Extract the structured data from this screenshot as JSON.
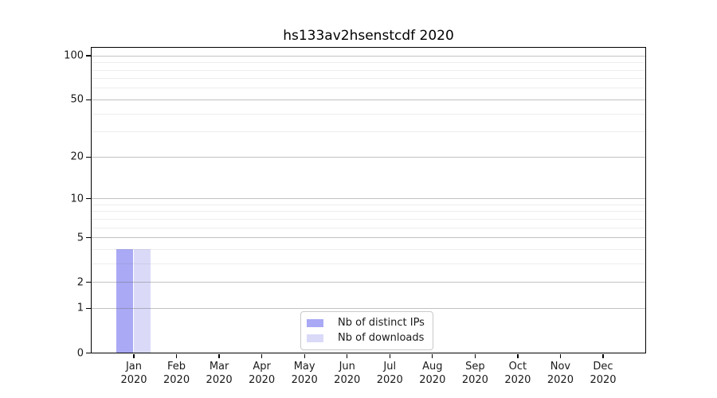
{
  "chart_data": {
    "type": "bar",
    "title": "hs133av2hsenstcdf 2020",
    "categories": [
      {
        "month": "Jan",
        "year": "2020"
      },
      {
        "month": "Feb",
        "year": "2020"
      },
      {
        "month": "Mar",
        "year": "2020"
      },
      {
        "month": "Apr",
        "year": "2020"
      },
      {
        "month": "May",
        "year": "2020"
      },
      {
        "month": "Jun",
        "year": "2020"
      },
      {
        "month": "Jul",
        "year": "2020"
      },
      {
        "month": "Aug",
        "year": "2020"
      },
      {
        "month": "Sep",
        "year": "2020"
      },
      {
        "month": "Oct",
        "year": "2020"
      },
      {
        "month": "Nov",
        "year": "2020"
      },
      {
        "month": "Dec",
        "year": "2020"
      }
    ],
    "series": [
      {
        "name": "Nb of distinct IPs",
        "color": "#a9a9f5",
        "values": [
          4,
          0,
          0,
          0,
          0,
          0,
          0,
          0,
          0,
          0,
          0,
          0
        ]
      },
      {
        "name": "Nb of downloads",
        "color": "#dadaf8",
        "values": [
          4,
          0,
          0,
          0,
          0,
          0,
          0,
          0,
          0,
          0,
          0,
          0
        ]
      }
    ],
    "yscale": "log1p",
    "ylim": [
      0,
      113.5
    ],
    "yticks": [
      0,
      1,
      2,
      5,
      10,
      20,
      50,
      100
    ],
    "yticks_minor": [
      3,
      4,
      6,
      7,
      8,
      9,
      30,
      40,
      60,
      70,
      80,
      90
    ],
    "xlim": [
      -0.99,
      11.99
    ],
    "bar_width": 0.4,
    "grid": true,
    "grid_above_bars": true,
    "legend_position": "lower center",
    "axis_color": "#000000",
    "major_grid_color": "#c6c6c6",
    "minor_grid_color": "#ededed"
  }
}
